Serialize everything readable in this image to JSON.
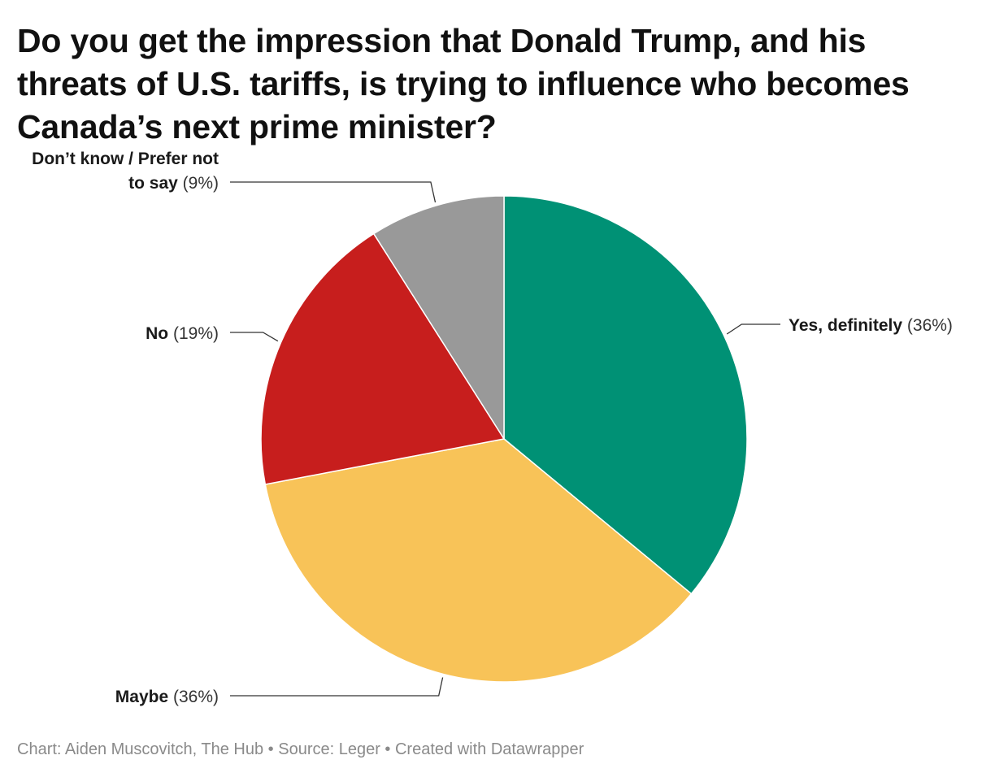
{
  "chart_data": {
    "type": "pie",
    "title": "Do you get the impression that Donald Trump, and his threats of U.S. tariffs, is trying to influence who becomes Canada’s next prime minister?",
    "unit": "%",
    "slices": [
      {
        "label": "Yes, definitely",
        "value": 36,
        "value_label": "(36%)",
        "color": "#009175"
      },
      {
        "label": "Maybe",
        "value": 36,
        "value_label": "(36%)",
        "color": "#f8c358"
      },
      {
        "label": "No",
        "value": 19,
        "value_label": "(19%)",
        "color": "#c71e1d"
      },
      {
        "label": "Don’t know / Prefer not to say",
        "label_lines": [
          "Don’t know / Prefer not",
          "to say"
        ],
        "value": 9,
        "value_label": "(9%)",
        "color": "#999999"
      }
    ]
  },
  "footer": {
    "text": "Chart: Aiden Muscovitch, The Hub • Source: Leger • Created with Datawrapper"
  }
}
